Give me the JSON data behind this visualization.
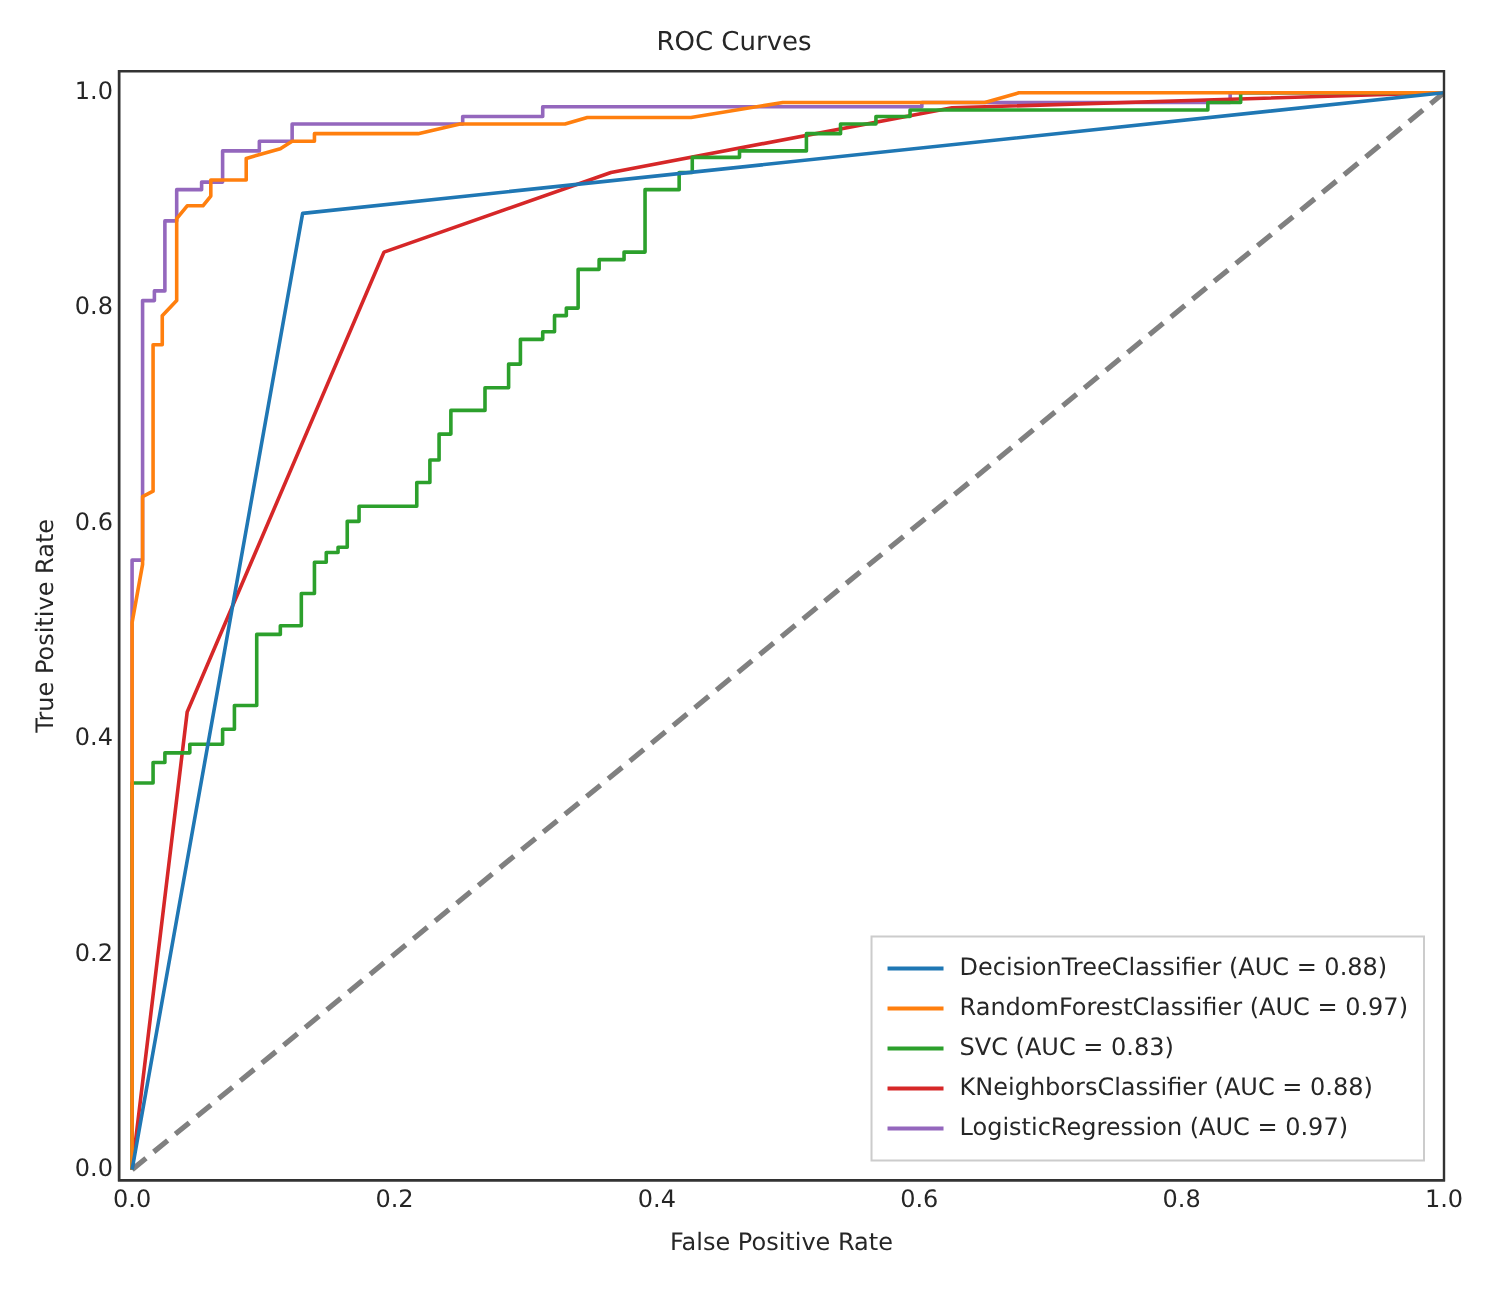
{
  "chart_data": {
    "type": "line",
    "title": "ROC Curves",
    "xlabel": "False Positive Rate",
    "ylabel": "True Positive Rate",
    "xlim": [
      -0.01,
      1.0
    ],
    "ylim": [
      -0.01,
      1.02
    ],
    "xticks": [
      {
        "value": 0,
        "label": "0.0"
      },
      {
        "value": 0.2,
        "label": "0.2"
      },
      {
        "value": 0.4,
        "label": "0.4"
      },
      {
        "value": 0.6,
        "label": "0.6"
      },
      {
        "value": 0.8,
        "label": "0.8"
      },
      {
        "value": 1,
        "label": "1.0"
      }
    ],
    "yticks": [
      {
        "value": 0,
        "label": "0.0"
      },
      {
        "value": 0.2,
        "label": "0.2"
      },
      {
        "value": 0.4,
        "label": "0.4"
      },
      {
        "value": 0.6,
        "label": "0.6"
      },
      {
        "value": 0.8,
        "label": "0.8"
      },
      {
        "value": 1,
        "label": "1.0"
      }
    ],
    "grid": false,
    "legend": "bottom right",
    "marker": "none",
    "line_style": "solid",
    "series": [
      {
        "name": "DecisionTreeClassifier (AUC = 0.88)",
        "color": "#1f77b4",
        "x": [
          0,
          0.13,
          1
        ],
        "values": [
          0,
          0.888,
          1
        ]
      },
      {
        "name": "RandomForestClassifier (AUC = 0.97)",
        "color": "#ff7f0e",
        "x": [
          0,
          0,
          0.008,
          0.008,
          0.016,
          0.016,
          0.023,
          0.023,
          0.034,
          0.034,
          0.042,
          0.054,
          0.06,
          0.06,
          0.087,
          0.087,
          0.113,
          0.122,
          0.139,
          0.139,
          0.218,
          0.25,
          0.33,
          0.347,
          0.426,
          0.496,
          0.65,
          0.676,
          1
        ],
        "values": [
          0,
          0.508,
          0.562,
          0.625,
          0.63,
          0.766,
          0.766,
          0.793,
          0.807,
          0.883,
          0.895,
          0.895,
          0.904,
          0.919,
          0.919,
          0.939,
          0.948,
          0.955,
          0.955,
          0.962,
          0.962,
          0.971,
          0.971,
          0.977,
          0.977,
          0.991,
          0.991,
          1,
          1
        ]
      },
      {
        "name": "SVC (AUC = 0.83)",
        "color": "#2ca02c",
        "x": [
          0,
          0,
          0.016,
          0.016,
          0.025,
          0.025,
          0.044,
          0.044,
          0.069,
          0.069,
          0.078,
          0.078,
          0.095,
          0.095,
          0.113,
          0.113,
          0.129,
          0.129,
          0.139,
          0.139,
          0.148,
          0.148,
          0.157,
          0.157,
          0.164,
          0.164,
          0.173,
          0.173,
          0.217,
          0.217,
          0.227,
          0.227,
          0.234,
          0.234,
          0.243,
          0.243,
          0.269,
          0.269,
          0.287,
          0.287,
          0.296,
          0.296,
          0.313,
          0.313,
          0.322,
          0.322,
          0.331,
          0.331,
          0.34,
          0.34,
          0.356,
          0.356,
          0.375,
          0.375,
          0.391,
          0.391,
          0.417,
          0.417,
          0.427,
          0.427,
          0.463,
          0.463,
          0.514,
          0.514,
          0.54,
          0.54,
          0.567,
          0.567,
          0.593,
          0.593,
          0.82,
          0.82,
          0.845,
          0.845,
          1
        ],
        "values": [
          0,
          0.359,
          0.359,
          0.378,
          0.378,
          0.387,
          0.387,
          0.395,
          0.395,
          0.409,
          0.409,
          0.431,
          0.431,
          0.497,
          0.497,
          0.505,
          0.505,
          0.535,
          0.535,
          0.564,
          0.564,
          0.573,
          0.573,
          0.578,
          0.578,
          0.602,
          0.602,
          0.616,
          0.616,
          0.638,
          0.638,
          0.659,
          0.659,
          0.683,
          0.683,
          0.705,
          0.705,
          0.726,
          0.726,
          0.748,
          0.748,
          0.771,
          0.771,
          0.778,
          0.778,
          0.793,
          0.793,
          0.8,
          0.8,
          0.836,
          0.836,
          0.845,
          0.845,
          0.852,
          0.852,
          0.91,
          0.91,
          0.926,
          0.926,
          0.94,
          0.94,
          0.946,
          0.946,
          0.962,
          0.962,
          0.971,
          0.971,
          0.978,
          0.978,
          0.984,
          0.984,
          0.991,
          0.991,
          1,
          1
        ]
      },
      {
        "name": "KNeighborsClassifier (AUC = 0.88)",
        "color": "#d62728",
        "x": [
          0,
          0.042,
          0.192,
          0.365,
          0.625,
          1
        ],
        "values": [
          0,
          0.425,
          0.852,
          0.926,
          0.986,
          1
        ]
      },
      {
        "name": "LogisticRegression (AUC = 0.97)",
        "color": "#9467bd",
        "x": [
          0,
          0,
          0.008,
          0.008,
          0.017,
          0.017,
          0.025,
          0.025,
          0.034,
          0.034,
          0.053,
          0.053,
          0.069,
          0.069,
          0.097,
          0.097,
          0.122,
          0.122,
          0.252,
          0.252,
          0.313,
          0.313,
          0.602,
          0.602,
          0.837,
          0.837,
          1
        ],
        "values": [
          0,
          0.566,
          0.566,
          0.807,
          0.807,
          0.816,
          0.816,
          0.881,
          0.881,
          0.91,
          0.91,
          0.917,
          0.917,
          0.946,
          0.946,
          0.955,
          0.955,
          0.971,
          0.971,
          0.978,
          0.978,
          0.987,
          0.987,
          0.991,
          0.991,
          1,
          1
        ]
      },
      {
        "color": "#808080",
        "line_style": "dashed",
        "x": [
          0,
          1
        ],
        "values": [
          0,
          1
        ]
      }
    ]
  }
}
